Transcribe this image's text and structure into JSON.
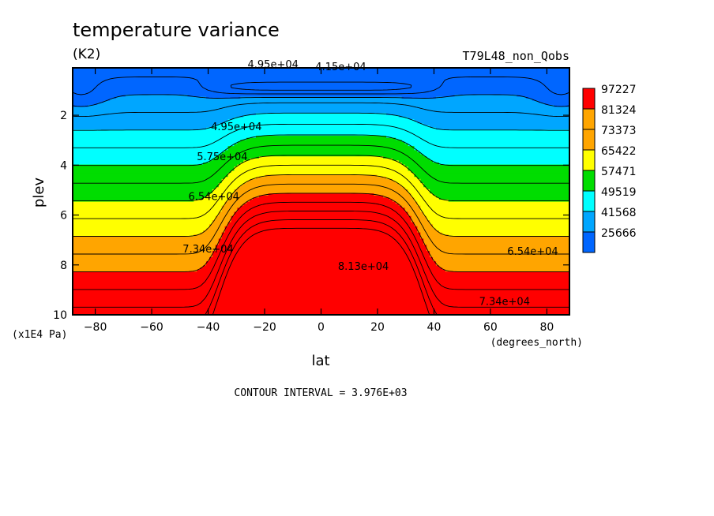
{
  "chart_data": {
    "type": "contour",
    "title": "temperature variance",
    "units": "(K2)",
    "run_label": "T79L48_non_Qobs",
    "xlabel": "lat",
    "xunits": "(degrees_north)",
    "ylabel": "plev",
    "yunits": "(x1E4 Pa)",
    "x_ticks": [
      -80,
      -60,
      -40,
      -20,
      0,
      20,
      40,
      60,
      80
    ],
    "y_ticks": [
      2,
      4,
      6,
      8,
      10
    ],
    "xlim": [
      -88,
      88
    ],
    "ylim": [
      10,
      0.1
    ],
    "contour_interval_text": "CONTOUR INTERVAL = 3.976E+03",
    "legend": {
      "placement": "right",
      "levels": [
        "97227",
        "81324",
        "73373",
        "65422",
        "57471",
        "49519",
        "41568",
        "25666"
      ],
      "colors": [
        "#ff0000",
        "#ffa500",
        "#ffa500",
        "#ffff00",
        "#00dd00",
        "#00ffff",
        "#00a6ff",
        "#0066ff"
      ]
    },
    "bands": [
      {
        "min": 25666,
        "max": 41568,
        "color": "#0066ff"
      },
      {
        "min": 41568,
        "max": 49519,
        "color": "#00a6ff"
      },
      {
        "min": 49519,
        "max": 57471,
        "color": "#00ffff"
      },
      {
        "min": 57471,
        "max": 65422,
        "color": "#00dd00"
      },
      {
        "min": 65422,
        "max": 73373,
        "color": "#ffff00"
      },
      {
        "min": 73373,
        "max": 81324,
        "color": "#ffa500"
      },
      {
        "min": 81324,
        "max": 97227,
        "color": "#ff0000"
      }
    ],
    "contour_labels": [
      {
        "text": "4.95e+04",
        "lat": -17,
        "plev": 0.1
      },
      {
        "text": "4.15e+04",
        "lat": 7,
        "plev": 0.2
      },
      {
        "text": "4.95e+04",
        "lat": -30,
        "plev": 2.6
      },
      {
        "text": "5.75e+04",
        "lat": -35,
        "plev": 3.8
      },
      {
        "text": "6.54e+04",
        "lat": -38,
        "plev": 5.4
      },
      {
        "text": "7.34e+04",
        "lat": -40,
        "plev": 7.5
      },
      {
        "text": "8.13e+04",
        "lat": 15,
        "plev": 8.2
      },
      {
        "text": "6.54e+04",
        "lat": 75,
        "plev": 7.6
      },
      {
        "text": "7.34e+04",
        "lat": 65,
        "plev": 9.6
      }
    ]
  }
}
